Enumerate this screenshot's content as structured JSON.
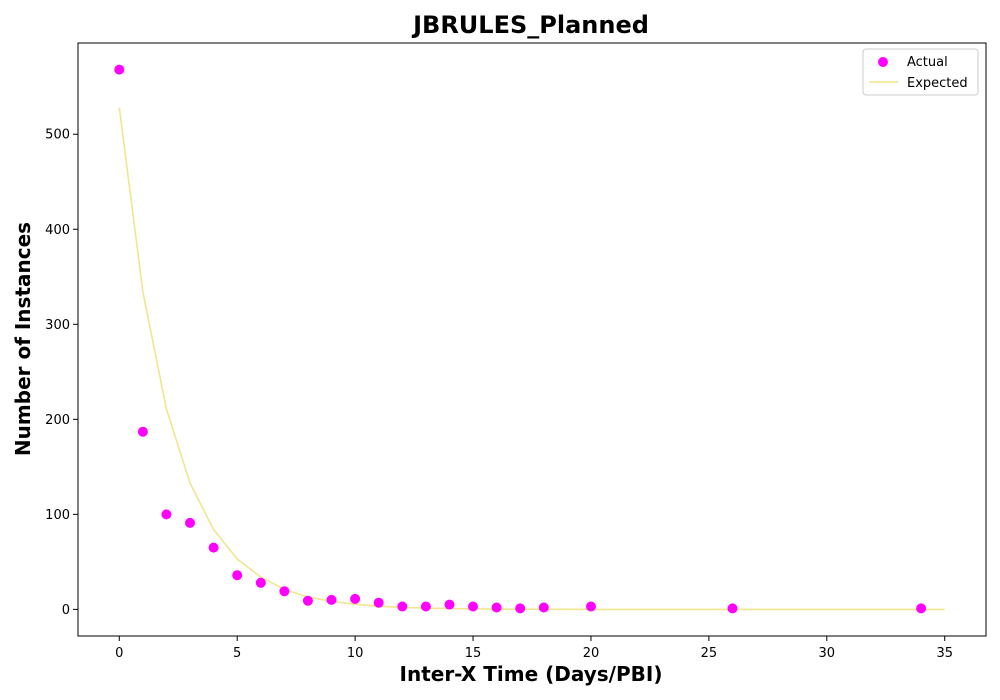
{
  "chart_data": {
    "type": "scatter",
    "title": "JBRULES_Planned",
    "xlabel": "Inter-X Time (Days/PBI)",
    "ylabel": "Number of Instances",
    "xlim": [
      -1.75,
      36.75
    ],
    "ylim": [
      -28,
      596
    ],
    "xticks": [
      0,
      5,
      10,
      15,
      20,
      25,
      30,
      35
    ],
    "yticks": [
      0,
      100,
      200,
      300,
      400,
      500
    ],
    "legend_position": "top-right",
    "grid": false,
    "series": [
      {
        "name": "Actual",
        "kind": "scatter",
        "color": "#ff00ff",
        "x": [
          0,
          1,
          2,
          3,
          4,
          5,
          6,
          7,
          8,
          9,
          10,
          11,
          12,
          13,
          14,
          15,
          16,
          17,
          18,
          20,
          26,
          34
        ],
        "y": [
          568,
          187,
          100,
          91,
          65,
          36,
          28,
          19,
          9,
          10,
          11,
          7,
          3,
          3,
          5,
          3,
          2,
          1,
          2,
          3,
          1,
          1
        ]
      },
      {
        "name": "Expected",
        "kind": "line",
        "color": "#f0e68c",
        "x": [
          0,
          1,
          2,
          3,
          4,
          5,
          6,
          7,
          8,
          9,
          10,
          11,
          12,
          13,
          14,
          15,
          16,
          17,
          18,
          19,
          20,
          21,
          22,
          23,
          24,
          25,
          26,
          27,
          28,
          29,
          30,
          31,
          32,
          33,
          34,
          35
        ],
        "y": [
          528,
          334,
          211,
          133,
          84,
          53,
          34,
          21,
          13,
          8.5,
          5.4,
          3.4,
          2.1,
          1.4,
          0.9,
          0.5,
          0.3,
          0.2,
          0.1,
          0.1,
          0,
          0,
          0,
          0,
          0,
          0,
          0,
          0,
          0,
          0,
          0,
          0,
          0,
          0,
          0,
          0
        ]
      }
    ]
  }
}
